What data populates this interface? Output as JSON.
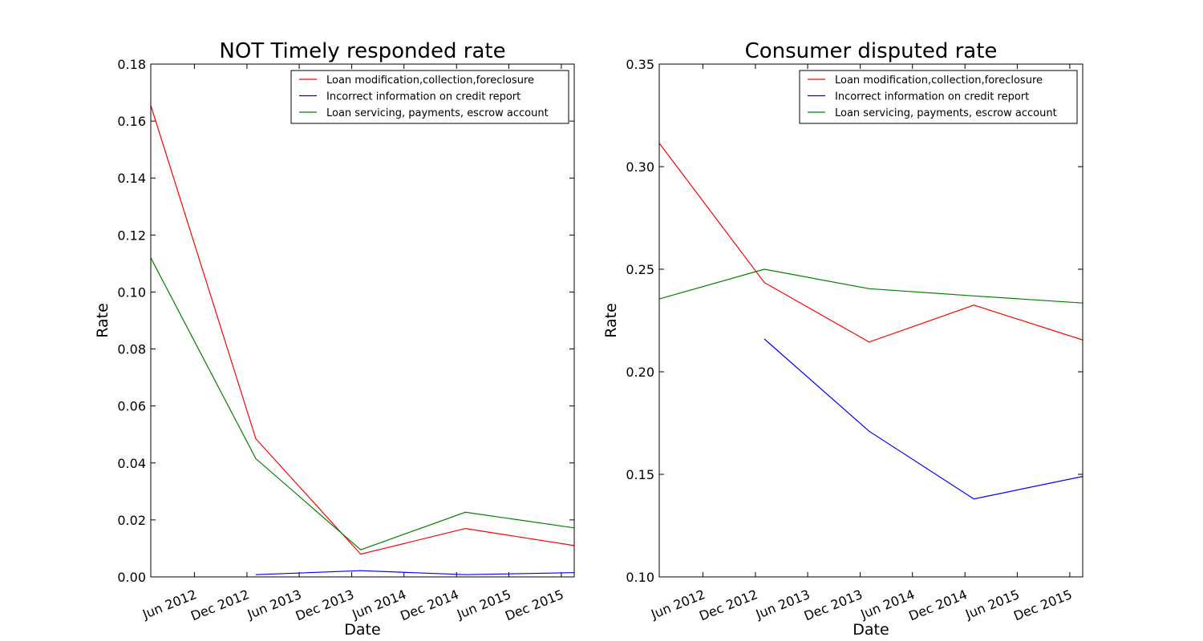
{
  "chart_data": [
    {
      "type": "line",
      "title": "NOT Timely responded rate",
      "xlabel": "Date",
      "ylabel": "Rate",
      "ylim": [
        0.0,
        0.18
      ],
      "xlim": [
        "2012-01-01",
        "2016-01-15"
      ],
      "yticks": [
        0.0,
        0.02,
        0.04,
        0.06,
        0.08,
        0.1,
        0.12,
        0.14,
        0.16,
        0.18
      ],
      "ytick_labels": [
        "0.00",
        "0.02",
        "0.04",
        "0.06",
        "0.08",
        "0.10",
        "0.12",
        "0.14",
        "0.16",
        "0.18"
      ],
      "xticks": [
        "2012-06-01",
        "2012-12-01",
        "2013-06-01",
        "2013-12-01",
        "2014-06-01",
        "2014-12-01",
        "2015-06-01",
        "2015-12-01"
      ],
      "xtick_labels": [
        "Jun 2012",
        "Dec 2012",
        "Jun 2013",
        "Dec 2013",
        "Jun 2014",
        "Dec 2014",
        "Jun 2015",
        "Dec 2015"
      ],
      "legend_position": "top-right",
      "grid": false,
      "series": [
        {
          "name": "Loan modification,collection,foreclosure",
          "color": "#ff0000",
          "x": [
            "2012-01-01",
            "2013-01-01",
            "2014-01-01",
            "2015-01-01",
            "2016-01-15"
          ],
          "y": [
            0.1655,
            0.0485,
            0.008,
            0.017,
            0.011
          ]
        },
        {
          "name": "Incorrect information on credit report",
          "color": "#0000ff",
          "x": [
            "2013-01-01",
            "2014-01-01",
            "2015-01-01",
            "2016-01-15"
          ],
          "y": [
            0.0008,
            0.0022,
            0.0008,
            0.0015
          ]
        },
        {
          "name": "Loan servicing, payments, escrow account",
          "color": "#008000",
          "x": [
            "2012-01-01",
            "2013-01-01",
            "2014-01-01",
            "2015-01-01",
            "2016-01-15"
          ],
          "y": [
            0.112,
            0.0415,
            0.0095,
            0.0227,
            0.0172
          ]
        }
      ]
    },
    {
      "type": "line",
      "title": "Consumer disputed rate",
      "xlabel": "Date",
      "ylabel": "Rate",
      "ylim": [
        0.1,
        0.35
      ],
      "xlim": [
        "2012-01-01",
        "2016-01-15"
      ],
      "yticks": [
        0.1,
        0.15,
        0.2,
        0.25,
        0.3,
        0.35
      ],
      "ytick_labels": [
        "0.10",
        "0.15",
        "0.20",
        "0.25",
        "0.30",
        "0.35"
      ],
      "xticks": [
        "2012-06-01",
        "2012-12-01",
        "2013-06-01",
        "2013-12-01",
        "2014-06-01",
        "2014-12-01",
        "2015-06-01",
        "2015-12-01"
      ],
      "xtick_labels": [
        "Jun 2012",
        "Dec 2012",
        "Jun 2013",
        "Dec 2013",
        "Jun 2014",
        "Dec 2014",
        "Jun 2015",
        "Dec 2015"
      ],
      "legend_position": "top-right",
      "grid": false,
      "series": [
        {
          "name": "Loan modification,collection,foreclosure",
          "color": "#ff0000",
          "x": [
            "2012-01-01",
            "2013-01-01",
            "2014-01-01",
            "2015-01-01",
            "2016-01-15"
          ],
          "y": [
            0.3115,
            0.2435,
            0.2145,
            0.2325,
            0.2155
          ]
        },
        {
          "name": "Incorrect information on credit report",
          "color": "#0000ff",
          "x": [
            "2013-01-01",
            "2014-01-01",
            "2015-01-01",
            "2016-01-15"
          ],
          "y": [
            0.216,
            0.171,
            0.138,
            0.149
          ]
        },
        {
          "name": "Loan servicing, payments, escrow account",
          "color": "#008000",
          "x": [
            "2012-01-01",
            "2013-01-01",
            "2014-01-01",
            "2015-01-01",
            "2016-01-15"
          ],
          "y": [
            0.2355,
            0.25,
            0.2405,
            0.237,
            0.2335
          ]
        }
      ]
    }
  ]
}
